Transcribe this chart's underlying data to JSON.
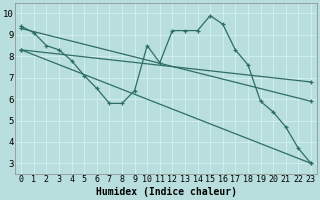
{
  "xlabel": "Humidex (Indice chaleur)",
  "background_color": "#b8dede",
  "grid_color": "#d0eeee",
  "line_color": "#2e6e62",
  "xlim": [
    -0.5,
    23.5
  ],
  "ylim": [
    2.5,
    10.5
  ],
  "xticks": [
    0,
    1,
    2,
    3,
    4,
    5,
    6,
    7,
    8,
    9,
    10,
    11,
    12,
    13,
    14,
    15,
    16,
    17,
    18,
    19,
    20,
    21,
    22,
    23
  ],
  "yticks": [
    3,
    4,
    5,
    6,
    7,
    8,
    9,
    10
  ],
  "line1_x": [
    0,
    1,
    2,
    3,
    4,
    5,
    6,
    7,
    8,
    9,
    10,
    11,
    12,
    13,
    14,
    15,
    16,
    17,
    18,
    19,
    20,
    21,
    22,
    23
  ],
  "line1_y": [
    9.4,
    9.1,
    8.5,
    8.3,
    7.8,
    7.1,
    6.5,
    5.8,
    5.8,
    6.4,
    8.5,
    7.7,
    9.2,
    9.2,
    9.2,
    9.9,
    9.5,
    8.3,
    7.6,
    5.9,
    5.4,
    4.7,
    3.7,
    3.0
  ],
  "line2_x": [
    0,
    23
  ],
  "line2_y": [
    9.3,
    5.9
  ],
  "line3_x": [
    0,
    23
  ],
  "line3_y": [
    8.3,
    3.0
  ],
  "line4_x": [
    0,
    23
  ],
  "line4_y": [
    8.3,
    6.8
  ],
  "font_size": 6.5
}
